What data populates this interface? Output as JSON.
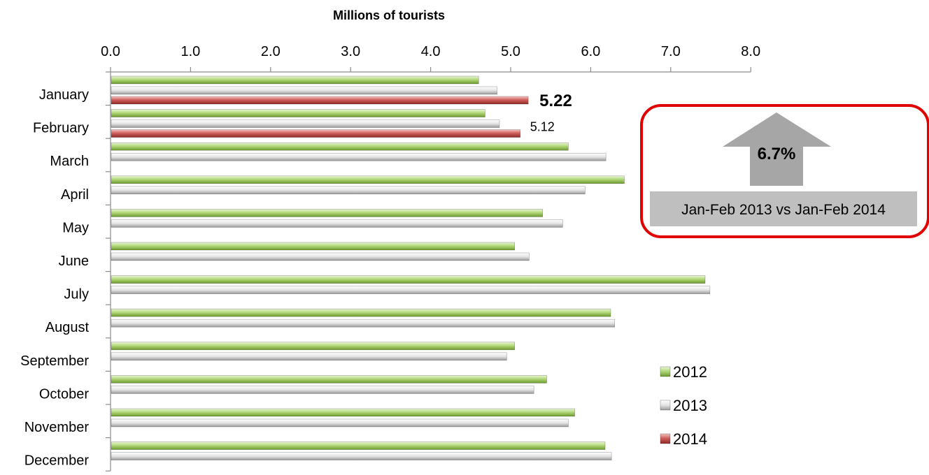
{
  "chart_data": {
    "type": "bar",
    "orientation": "horizontal",
    "title": "Millions of tourists",
    "categories": [
      "January",
      "February",
      "March",
      "April",
      "May",
      "June",
      "July",
      "August",
      "September",
      "October",
      "November",
      "December"
    ],
    "series": [
      {
        "name": "2012",
        "color": "#92C050",
        "values": [
          4.6,
          4.68,
          5.72,
          6.42,
          5.4,
          5.05,
          7.43,
          6.25,
          5.05,
          5.45,
          5.8,
          6.18
        ]
      },
      {
        "name": "2013",
        "color": "#D0D0D0",
        "values": [
          4.83,
          4.86,
          6.19,
          5.93,
          5.65,
          5.23,
          7.49,
          6.3,
          4.95,
          5.29,
          5.72,
          6.26
        ]
      },
      {
        "name": "2014",
        "color": "#C0504D",
        "values": [
          5.22,
          5.12,
          null,
          null,
          null,
          null,
          null,
          null,
          null,
          null,
          null,
          null
        ]
      }
    ],
    "xlim": [
      0,
      8
    ],
    "xticks": [
      "0.0",
      "1.0",
      "2.0",
      "3.0",
      "4.0",
      "5.0",
      "6.0",
      "7.0",
      "8.0"
    ],
    "data_labels": [
      {
        "series": "2014",
        "category": "January",
        "text": "5.22",
        "emphasis": "bold"
      },
      {
        "series": "2014",
        "category": "February",
        "text": "5.12",
        "emphasis": "normal"
      }
    ],
    "legend_position": "bottom-right",
    "grid": false
  },
  "callout": {
    "arrow": "up-arrow-icon",
    "value": "6.7%",
    "text": "Jan-Feb 2013 vs Jan-Feb 2014",
    "border_color": "#E00000",
    "fill_color": "#BFBFBF"
  }
}
